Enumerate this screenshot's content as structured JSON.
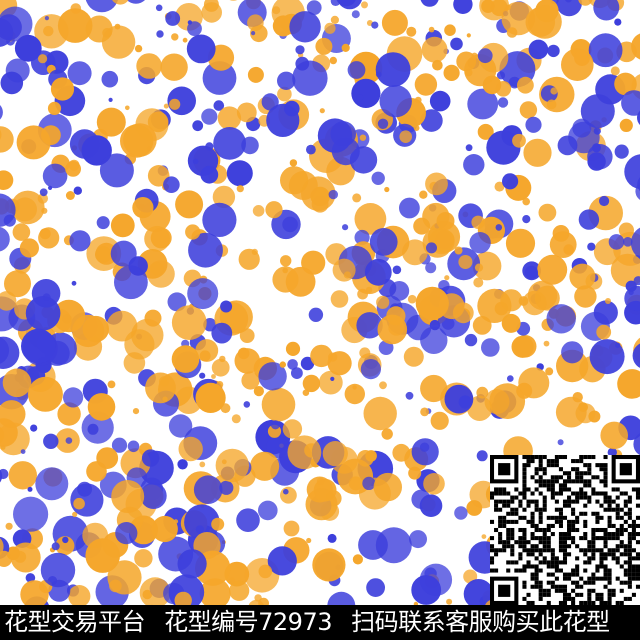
{
  "pattern": {
    "type": "ink-splatter dots",
    "colors": {
      "orange": "#f5a62a",
      "blue": "#3d3fdc",
      "background": "#ffffff"
    }
  },
  "watermark": {
    "platform": "花型交易平台",
    "pattern_number": "花型编号72973",
    "contact": "扫码联系客服购买此花型"
  },
  "qr_code": {
    "icon": "qr-code"
  }
}
